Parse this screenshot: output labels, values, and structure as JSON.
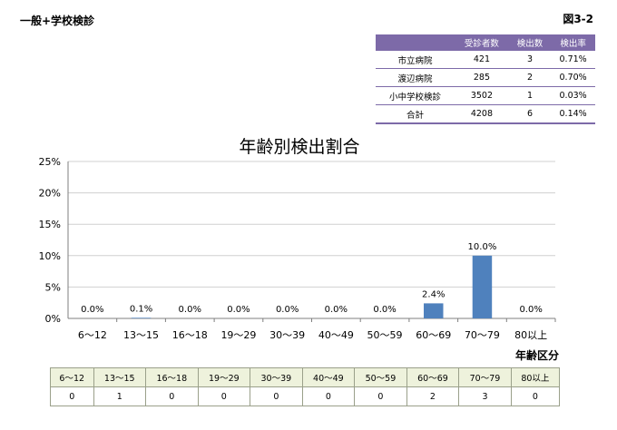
{
  "header": {
    "title": "一般+学校検診",
    "figure_label": "図3-2"
  },
  "summary_table": {
    "headers": [
      "",
      "受診者数",
      "検出数",
      "検出率"
    ],
    "rows": [
      [
        "市立病院",
        "421",
        "3",
        "0.71%"
      ],
      [
        "渡辺病院",
        "285",
        "2",
        "0.70%"
      ],
      [
        "小中学校検診",
        "3502",
        "1",
        "0.03%"
      ],
      [
        "合計",
        "4208",
        "6",
        "0.14%"
      ]
    ]
  },
  "chart_data": {
    "type": "bar",
    "title": "年齢別検出割合",
    "xlabel": "年齢区分",
    "ylabel": "",
    "categories": [
      "6～12",
      "13～15",
      "16～18",
      "19～29",
      "30～39",
      "40～49",
      "50～59",
      "60～69",
      "70～79",
      "80以上"
    ],
    "values": [
      0.0,
      0.1,
      0.0,
      0.0,
      0.0,
      0.0,
      0.0,
      2.4,
      10.0,
      0.0
    ],
    "data_labels": [
      "0.0%",
      "0.1%",
      "0.0%",
      "0.0%",
      "0.0%",
      "0.0%",
      "0.0%",
      "2.4%",
      "10.0%",
      "0.0%"
    ],
    "ylim": [
      0,
      25
    ],
    "yticks": [
      0,
      5,
      10,
      15,
      20,
      25
    ],
    "ytick_labels": [
      "0%",
      "5%",
      "10%",
      "15%",
      "20%",
      "25%"
    ],
    "grid": true,
    "bar_color": "#4f81bd"
  },
  "count_table": {
    "categories": [
      "6～12",
      "13～15",
      "16～18",
      "19～29",
      "30～39",
      "40～49",
      "50～59",
      "60～69",
      "70～79",
      "80以上"
    ],
    "counts": [
      "0",
      "1",
      "0",
      "0",
      "0",
      "0",
      "0",
      "2",
      "3",
      "0"
    ]
  }
}
